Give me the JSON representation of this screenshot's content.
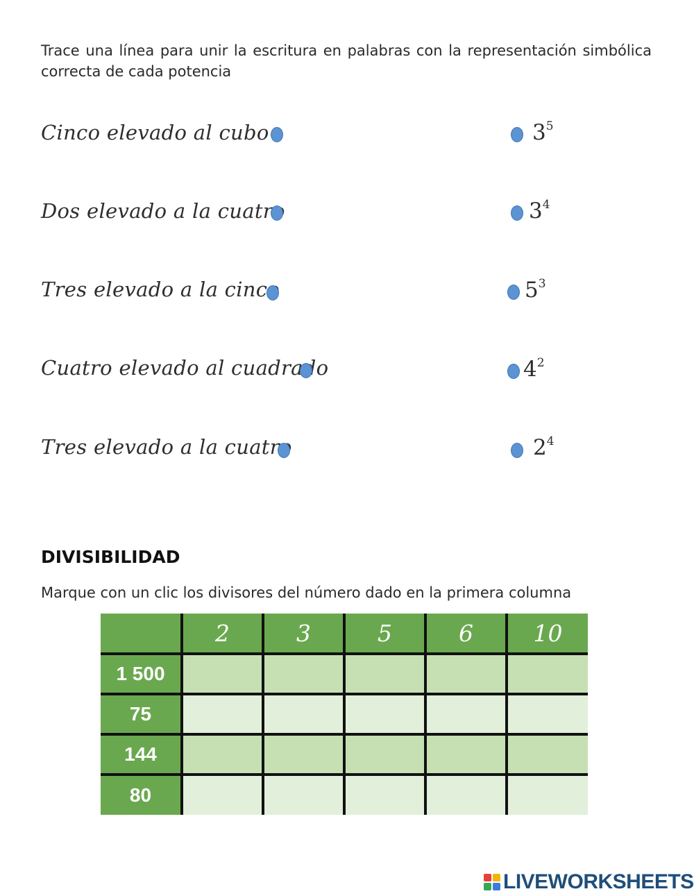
{
  "instruction": "Trace una línea para unir la escritura en palabras con la representación simbólica correcta de cada potencia",
  "matching": {
    "left": [
      "Cinco elevado al cubo",
      "Dos elevado a la cuatro",
      "Tres elevado a la cinco",
      "Cuatro elevado al cuadrado",
      "Tres elevado a la cuatro"
    ],
    "right": [
      {
        "base": "3",
        "exp": "5"
      },
      {
        "base": "3",
        "exp": "4"
      },
      {
        "base": "5",
        "exp": "3"
      },
      {
        "base": "4",
        "exp": "2"
      },
      {
        "base": "2",
        "exp": "4"
      }
    ]
  },
  "divisibility": {
    "title": "DIVISIBILIDAD",
    "subtitle": "Marque con un clic los divisores del número dado en la primera columna",
    "header": [
      "",
      "2",
      "3",
      "5",
      "6",
      "10"
    ],
    "rows": [
      "1 500",
      "75",
      "144",
      "80"
    ]
  },
  "footer": {
    "logo_text": "LIVEWORKSHEETS",
    "logo_colors": [
      "#e7403b",
      "#f5b400",
      "#36a852",
      "#3b7dd8"
    ]
  }
}
